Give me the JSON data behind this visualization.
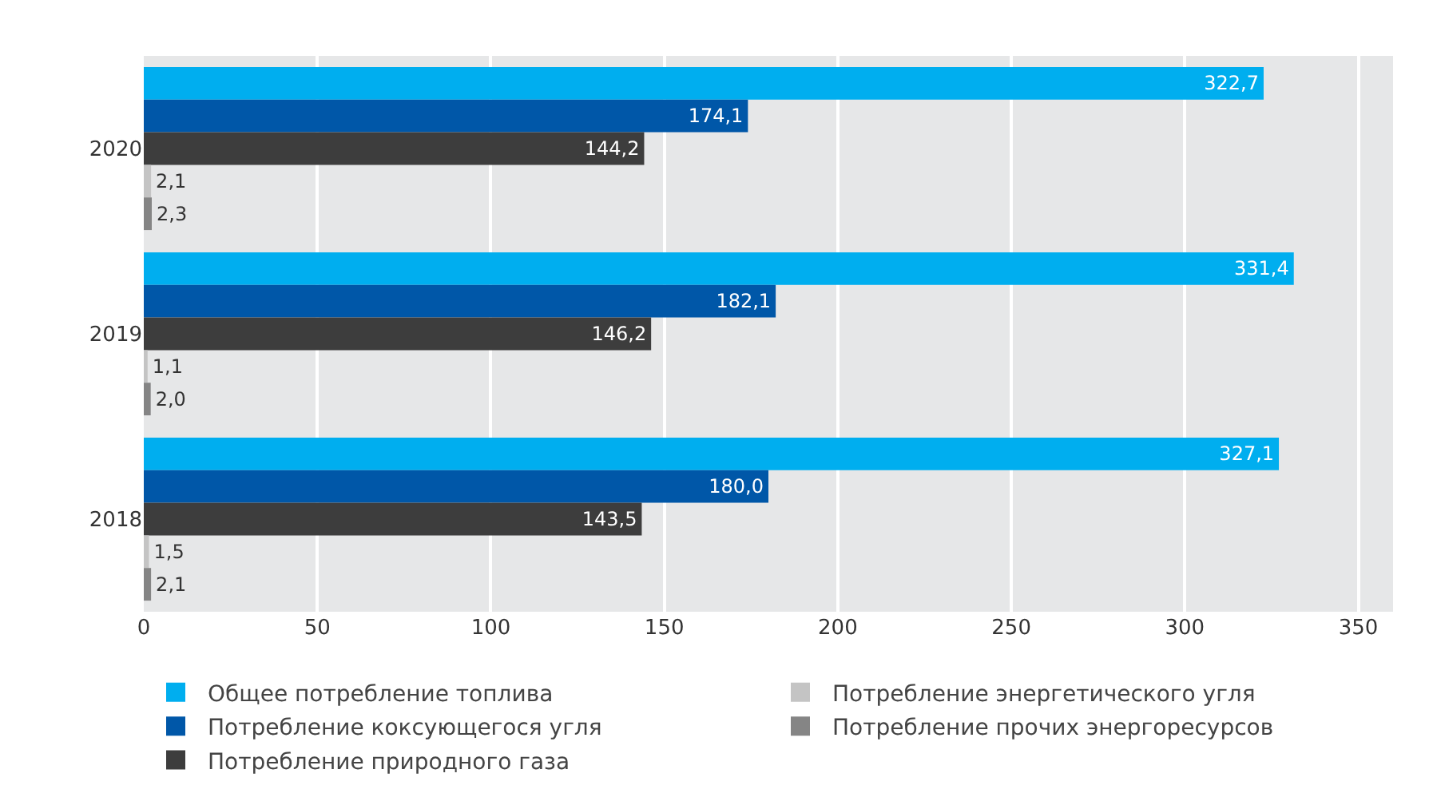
{
  "chart_data": {
    "type": "bar",
    "orientation": "horizontal",
    "categories": [
      "2020",
      "2019",
      "2018"
    ],
    "series": [
      {
        "name": "Общее потребление топлива",
        "color": "#00aeef",
        "values": [
          322.7,
          331.4,
          327.1
        ],
        "value_labels": [
          "322,7",
          "331,4",
          "327,1"
        ]
      },
      {
        "name": "Потребление коксующегося угля",
        "color": "#0057a8",
        "values": [
          174.1,
          182.1,
          180.0
        ],
        "value_labels": [
          "174,1",
          "182,1",
          "180,0"
        ]
      },
      {
        "name": "Потребление природного газа",
        "color": "#3d3d3d",
        "values": [
          144.2,
          146.2,
          143.5
        ],
        "value_labels": [
          "144,2",
          "146,2",
          "143,5"
        ]
      },
      {
        "name": "Потребление энергетического угля",
        "color": "#c4c4c4",
        "values": [
          2.1,
          1.1,
          1.5
        ],
        "value_labels": [
          "2,1",
          "1,1",
          "1,5"
        ]
      },
      {
        "name": "Потребление прочих энергоресурсов",
        "color": "#858585",
        "values": [
          2.3,
          2.0,
          2.1
        ],
        "value_labels": [
          "2,3",
          "2,0",
          "2,1"
        ]
      }
    ],
    "xlim": [
      0,
      360
    ],
    "xticks": [
      0,
      50,
      100,
      150,
      200,
      250,
      300,
      350
    ],
    "grid": "x",
    "legend": "bottom"
  }
}
